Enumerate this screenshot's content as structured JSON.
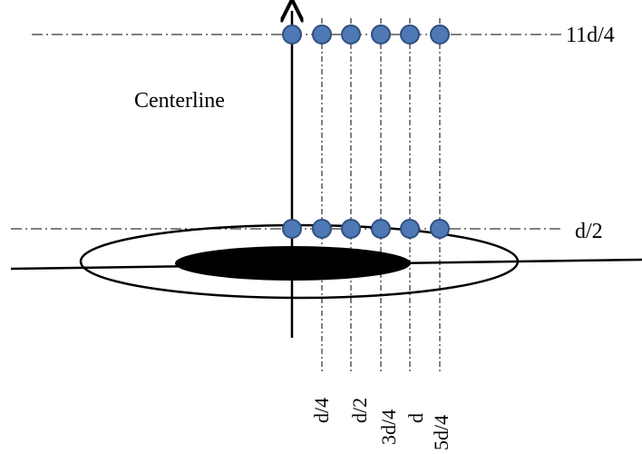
{
  "diagram": {
    "centerline_label": "Centerline",
    "row_labels": [
      "11d/4",
      "d/2"
    ],
    "column_labels": [
      "d/4",
      "d/2",
      "3d/4",
      "d",
      "5d/4"
    ]
  },
  "colors": {
    "point_fill": "#4f79b5",
    "point_stroke": "#2f4f80",
    "ink": "#000000"
  }
}
